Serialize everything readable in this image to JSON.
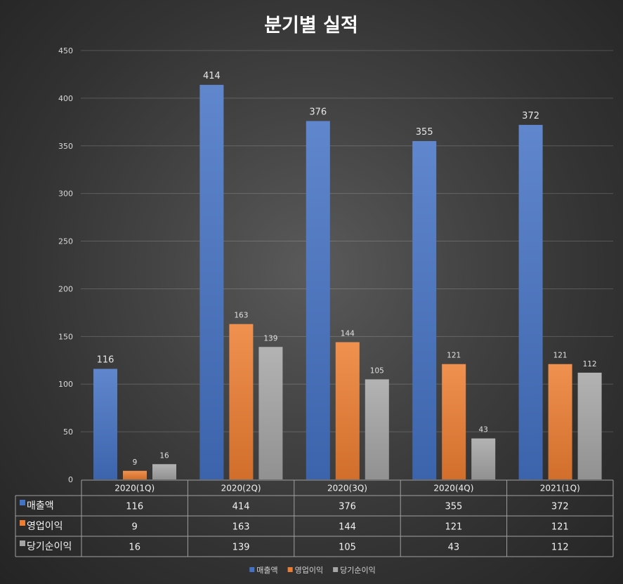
{
  "chart_data": {
    "type": "bar",
    "title": "분기별 실적",
    "categories": [
      "2020(1Q)",
      "2020(2Q)",
      "2020(3Q)",
      "2020(4Q)",
      "2021(1Q)"
    ],
    "series": [
      {
        "name": "매출액",
        "values": [
          116,
          414,
          376,
          355,
          372
        ],
        "color": "#4472c4"
      },
      {
        "name": "영업이익",
        "values": [
          9,
          163,
          144,
          121,
          121
        ],
        "color": "#ed7d31"
      },
      {
        "name": "당기순이익",
        "values": [
          16,
          139,
          105,
          43,
          112
        ],
        "color": "#a5a5a5"
      }
    ],
    "ylim": [
      0,
      450
    ],
    "yticks": [
      0,
      50,
      100,
      150,
      200,
      250,
      300,
      350,
      400,
      450
    ],
    "grid": true,
    "data_labels": true,
    "data_table": true,
    "legend": "bottom"
  }
}
